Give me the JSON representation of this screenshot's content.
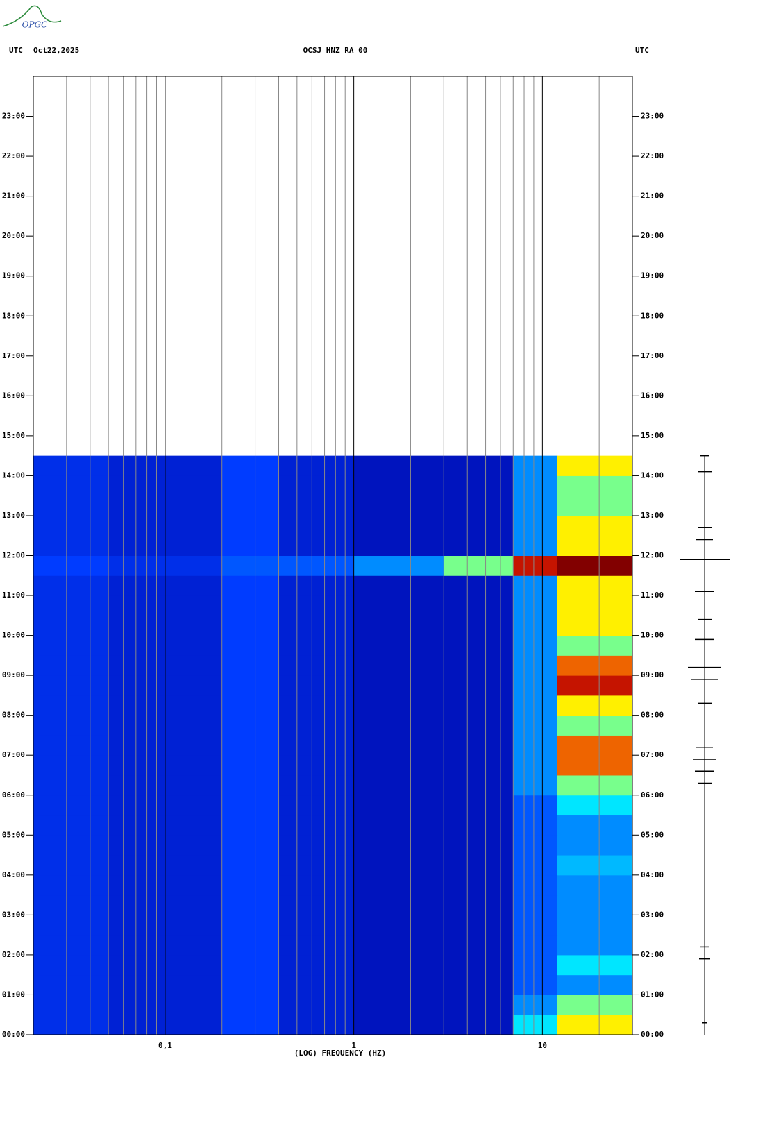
{
  "logo": "OPGC",
  "chart_data": {
    "type": "spectrogram",
    "title": "OCSJ HNZ RA 00",
    "date": "Oct22,2025",
    "left_label": "UTC",
    "right_label": "UTC",
    "xlabel": "(LOG) FREQUENCY (HZ)",
    "xscale": "log",
    "xlim": [
      0.02,
      30
    ],
    "xticks": [
      {
        "value": 0.1,
        "label": "0,1"
      },
      {
        "value": 1,
        "label": "1"
      },
      {
        "value": 10,
        "label": "10"
      }
    ],
    "xminorticks": [
      0.03,
      0.04,
      0.05,
      0.06,
      0.07,
      0.08,
      0.09,
      0.2,
      0.3,
      0.4,
      0.5,
      0.6,
      0.7,
      0.8,
      0.9,
      2,
      3,
      4,
      5,
      6,
      7,
      8,
      9,
      20
    ],
    "ylim": [
      0,
      24
    ],
    "yticks": [
      {
        "value": 0,
        "label": "00:00"
      },
      {
        "value": 1,
        "label": "01:00"
      },
      {
        "value": 2,
        "label": "02:00"
      },
      {
        "value": 3,
        "label": "03:00"
      },
      {
        "value": 4,
        "label": "04:00"
      },
      {
        "value": 5,
        "label": "05:00"
      },
      {
        "value": 6,
        "label": "06:00"
      },
      {
        "value": 7,
        "label": "07:00"
      },
      {
        "value": 8,
        "label": "08:00"
      },
      {
        "value": 9,
        "label": "09:00"
      },
      {
        "value": 10,
        "label": "10:00"
      },
      {
        "value": 11,
        "label": "11:00"
      },
      {
        "value": 12,
        "label": "12:00"
      },
      {
        "value": 13,
        "label": "13:00"
      },
      {
        "value": 14,
        "label": "14:00"
      },
      {
        "value": 15,
        "label": "15:00"
      },
      {
        "value": 16,
        "label": "16:00"
      },
      {
        "value": 17,
        "label": "17:00"
      },
      {
        "value": 18,
        "label": "18:00"
      },
      {
        "value": 19,
        "label": "19:00"
      },
      {
        "value": 20,
        "label": "20:00"
      },
      {
        "value": 21,
        "label": "21:00"
      },
      {
        "value": 22,
        "label": "22:00"
      },
      {
        "value": 23,
        "label": "23:00"
      }
    ],
    "freq_edges": [
      0.02,
      0.05,
      0.1,
      0.2,
      0.4,
      1,
      3,
      7,
      12,
      30
    ],
    "time_edges": [
      0,
      0.5,
      1,
      1.5,
      2,
      2.5,
      3,
      3.5,
      4,
      4.5,
      5,
      5.5,
      6,
      6.5,
      7,
      7.5,
      8,
      8.5,
      9,
      9.5,
      10,
      10.5,
      11,
      11.5,
      12,
      12.5,
      13,
      13.5,
      14,
      14.5
    ],
    "z": [
      [
        2,
        1.5,
        1.5,
        2.5,
        1.5,
        1,
        1,
        5,
        7
      ],
      [
        2,
        1.5,
        1.5,
        2.5,
        1.5,
        1,
        1,
        4,
        6
      ],
      [
        2,
        1.5,
        1.5,
        2.5,
        1.5,
        1,
        1,
        3,
        4
      ],
      [
        2,
        1.5,
        1.5,
        2.5,
        1.5,
        1,
        1,
        3,
        5
      ],
      [
        2,
        1.5,
        1.5,
        2.5,
        1.5,
        1,
        1,
        3,
        4
      ],
      [
        2,
        1.5,
        1.5,
        2.5,
        1.5,
        1,
        1,
        3,
        4
      ],
      [
        2,
        1.5,
        1.5,
        2.5,
        1.5,
        1,
        1,
        3,
        4
      ],
      [
        2,
        1.5,
        1.5,
        2.5,
        1.5,
        1,
        1,
        3,
        4
      ],
      [
        2,
        1.5,
        1.5,
        2.5,
        1.5,
        1,
        1,
        3,
        4.5
      ],
      [
        2,
        1.5,
        1.5,
        2.5,
        1.5,
        1,
        1,
        3,
        4
      ],
      [
        2,
        1.5,
        1.5,
        2.5,
        1.5,
        1,
        1,
        3,
        4
      ],
      [
        2,
        1.5,
        1.5,
        2.5,
        1.5,
        1,
        1,
        3,
        5
      ],
      [
        2,
        1.5,
        1.5,
        2.5,
        1.5,
        1,
        1,
        4,
        6
      ],
      [
        2,
        1.5,
        1.5,
        2.5,
        1.5,
        1,
        1,
        4,
        8
      ],
      [
        2,
        1.5,
        1.5,
        2.5,
        1.5,
        1,
        1,
        4,
        8
      ],
      [
        2,
        1.5,
        1.5,
        2.5,
        1.5,
        1,
        1,
        4,
        6
      ],
      [
        2,
        1.5,
        1.5,
        2.5,
        1.5,
        1,
        1,
        4,
        7
      ],
      [
        2,
        1.5,
        1.5,
        2.5,
        1.5,
        1,
        1,
        4,
        9
      ],
      [
        2,
        1.5,
        1.5,
        2.5,
        1.5,
        1,
        1,
        4,
        8
      ],
      [
        2,
        1.5,
        1.5,
        2.5,
        1.5,
        1,
        1,
        4,
        6
      ],
      [
        2,
        1.5,
        1.5,
        2.5,
        1.5,
        1,
        1,
        4,
        7
      ],
      [
        2,
        1.5,
        1.5,
        2.5,
        1.5,
        1,
        1,
        4,
        7
      ],
      [
        2,
        1.5,
        1.5,
        2.5,
        1.5,
        1,
        1,
        4,
        7
      ],
      [
        2.5,
        2,
        2,
        3,
        3,
        4,
        6,
        9,
        10
      ],
      [
        2,
        1.5,
        1.5,
        2.5,
        1.5,
        1,
        1,
        4,
        7
      ],
      [
        2,
        1.5,
        1.5,
        2.5,
        1.5,
        1,
        1,
        4,
        7
      ],
      [
        2,
        1.5,
        1.5,
        2.5,
        1.5,
        1,
        1,
        4,
        6
      ],
      [
        2,
        1.5,
        1.5,
        2.5,
        1.5,
        1,
        1,
        4,
        6
      ],
      [
        2,
        1.5,
        1.5,
        2.5,
        1.5,
        1,
        1,
        4,
        7
      ]
    ],
    "trace": {
      "hours": [
        0.3,
        1.9,
        2.2,
        6.3,
        6.6,
        6.9,
        7.2,
        8.3,
        8.9,
        9.2,
        9.9,
        10.4,
        11.1,
        11.9,
        12.4,
        12.7,
        14.1,
        14.5
      ],
      "amplitudes": [
        4,
        8,
        6,
        10,
        14,
        16,
        12,
        10,
        20,
        24,
        14,
        10,
        14,
        36,
        12,
        10,
        10,
        6
      ]
    }
  }
}
